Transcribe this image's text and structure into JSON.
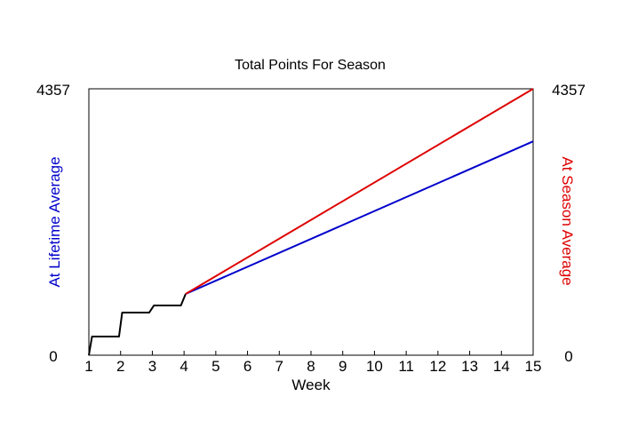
{
  "chart_data": {
    "type": "line",
    "title": "Total Points For Season",
    "xlabel": "Week",
    "ylabel_left": "At Lifetime Average",
    "ylabel_right": "At Season Average",
    "xlim": [
      1,
      15
    ],
    "ylim": [
      0,
      4357
    ],
    "x_ticks": [
      "1",
      "2",
      "3",
      "4",
      "5",
      "6",
      "7",
      "8",
      "9",
      "10",
      "11",
      "12",
      "13",
      "14",
      "15"
    ],
    "y_tick_left": {
      "min_label": "0",
      "max_label": "4357"
    },
    "y_tick_right": {
      "min_label": "0",
      "max_label": "4357"
    },
    "grid": false,
    "colors": {
      "actual": "#000000",
      "lifetime": "#0000cc",
      "season": "#dd0000",
      "left_axis_label": "#0000cc",
      "right_axis_label": "#dd0000"
    },
    "series": [
      {
        "key": "actual",
        "points": [
          [
            1.0,
            0
          ],
          [
            1.1,
            305
          ],
          [
            1.2,
            305
          ],
          [
            1.95,
            305
          ],
          [
            2.05,
            697
          ],
          [
            2.9,
            697
          ],
          [
            3.05,
            813
          ],
          [
            3.9,
            813
          ],
          [
            4.05,
            1002
          ]
        ]
      },
      {
        "key": "lifetime",
        "points": [
          [
            4.05,
            1002
          ],
          [
            15,
            3497
          ]
        ]
      },
      {
        "key": "season",
        "points": [
          [
            4.05,
            1002
          ],
          [
            15,
            4357
          ]
        ]
      }
    ]
  }
}
